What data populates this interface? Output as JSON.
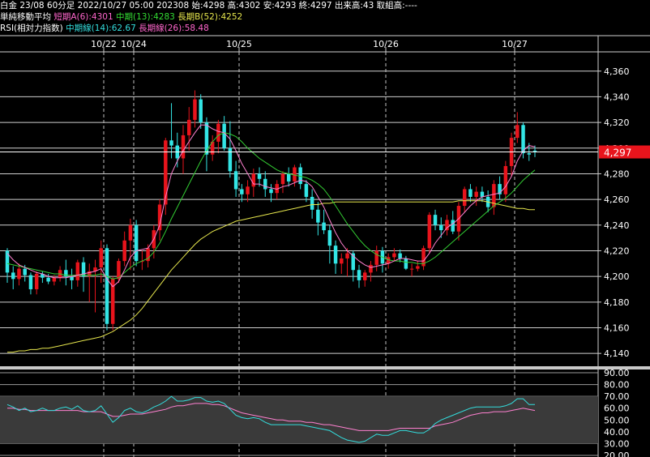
{
  "header": {
    "line1": "白金 23/08 60分足 2022/10/27 05:00 202308 始:4298 高:4302 安:4293 終:4297 出来高:43 取組高:----",
    "line2": {
      "label": "単純移動平均",
      "short": "短期A(6):4301",
      "mid": "中期(13):4283",
      "long": "長期B(52):4252"
    },
    "line3": {
      "label": "RSI(相対力指数)",
      "mid": "中期線(14):62.67",
      "long": "長期線(26):58.48"
    }
  },
  "colors": {
    "up": "#e8141c",
    "down": "#33e5e5",
    "ma_short": "#ff80d0",
    "ma_mid": "#33cc33",
    "ma_long": "#e6e64d",
    "rsi_mid": "#33dddd",
    "rsi_long": "#ff80d0",
    "price_tag": "#e8141c"
  },
  "chart_data": [
    {
      "type": "candlestick",
      "x_labels": [
        "10/22",
        "10/24",
        "10/25",
        "10/26",
        "10/27"
      ],
      "y_ticks": [
        "4,360",
        "4,340",
        "4,320",
        "4,300",
        "4,280",
        "4,260",
        "4,240",
        "4,220",
        "4,200",
        "4,180",
        "4,160",
        "4,140"
      ],
      "ylim": [
        4130,
        4375
      ],
      "last_price_label": "4,297",
      "candles": [
        [
          4220,
          4222,
          4195,
          4203
        ],
        [
          4203,
          4208,
          4190,
          4198
        ],
        [
          4198,
          4210,
          4193,
          4206
        ],
        [
          4206,
          4209,
          4196,
          4201
        ],
        [
          4201,
          4203,
          4186,
          4190
        ],
        [
          4190,
          4204,
          4186,
          4202
        ],
        [
          4202,
          4204,
          4195,
          4199
        ],
        [
          4199,
          4202,
          4194,
          4196
        ],
        [
          4196,
          4201,
          4193,
          4199
        ],
        [
          4199,
          4208,
          4196,
          4205
        ],
        [
          4205,
          4213,
          4193,
          4200
        ],
        [
          4200,
          4206,
          4190,
          4197
        ],
        [
          4197,
          4213,
          4192,
          4211
        ],
        [
          4211,
          4215,
          4188,
          4200
        ],
        [
          4200,
          4210,
          4180,
          4204
        ],
        [
          4204,
          4213,
          4172,
          4207
        ],
        [
          4207,
          4228,
          4195,
          4222
        ],
        [
          4222,
          4225,
          4158,
          4163
        ],
        [
          4163,
          4200,
          4158,
          4198
        ],
        [
          4198,
          4214,
          4195,
          4212
        ],
        [
          4212,
          4235,
          4208,
          4228
        ],
        [
          4228,
          4245,
          4205,
          4240
        ],
        [
          4240,
          4244,
          4208,
          4212
        ],
        [
          4212,
          4220,
          4205,
          4212
        ],
        [
          4212,
          4225,
          4207,
          4222
        ],
        [
          4222,
          4240,
          4214,
          4236
        ],
        [
          4236,
          4260,
          4228,
          4256
        ],
        [
          4256,
          4308,
          4248,
          4306
        ],
        [
          4306,
          4335,
          4292,
          4302
        ],
        [
          4302,
          4312,
          4285,
          4292
        ],
        [
          4292,
          4318,
          4280,
          4310
        ],
        [
          4310,
          4332,
          4298,
          4322
        ],
        [
          4322,
          4345,
          4316,
          4338
        ],
        [
          4338,
          4342,
          4315,
          4320
        ],
        [
          4320,
          4324,
          4282,
          4295
        ],
        [
          4295,
          4310,
          4290,
          4305
        ],
        [
          4305,
          4322,
          4296,
          4319
        ],
        [
          4319,
          4325,
          4298,
          4300
        ],
        [
          4300,
          4321,
          4277,
          4282
        ],
        [
          4282,
          4290,
          4262,
          4268
        ],
        [
          4268,
          4272,
          4258,
          4264
        ],
        [
          4264,
          4275,
          4258,
          4270
        ],
        [
          4270,
          4284,
          4262,
          4280
        ],
        [
          4280,
          4285,
          4270,
          4276
        ],
        [
          4276,
          4282,
          4262,
          4268
        ],
        [
          4268,
          4272,
          4258,
          4265
        ],
        [
          4265,
          4275,
          4260,
          4272
        ],
        [
          4272,
          4282,
          4265,
          4280
        ],
        [
          4280,
          4285,
          4270,
          4274
        ],
        [
          4274,
          4287,
          4270,
          4285
        ],
        [
          4285,
          4288,
          4268,
          4272
        ],
        [
          4272,
          4275,
          4258,
          4262
        ],
        [
          4262,
          4268,
          4245,
          4252
        ],
        [
          4252,
          4258,
          4232,
          4242
        ],
        [
          4242,
          4252,
          4233,
          4236
        ],
        [
          4236,
          4240,
          4210,
          4224
        ],
        [
          4224,
          4228,
          4202,
          4210
        ],
        [
          4210,
          4218,
          4202,
          4214
        ],
        [
          4214,
          4222,
          4200,
          4218
        ],
        [
          4218,
          4220,
          4196,
          4205
        ],
        [
          4205,
          4209,
          4191,
          4197
        ],
        [
          4197,
          4205,
          4192,
          4203
        ],
        [
          4203,
          4212,
          4196,
          4209
        ],
        [
          4209,
          4224,
          4204,
          4220
        ],
        [
          4220,
          4223,
          4203,
          4210
        ],
        [
          4210,
          4218,
          4206,
          4215
        ],
        [
          4215,
          4222,
          4212,
          4218
        ],
        [
          4218,
          4221,
          4211,
          4214
        ],
        [
          4214,
          4216,
          4205,
          4206
        ],
        [
          4206,
          4210,
          4200,
          4206
        ],
        [
          4206,
          4212,
          4204,
          4208
        ],
        [
          4208,
          4224,
          4205,
          4222
        ],
        [
          4222,
          4250,
          4218,
          4248
        ],
        [
          4248,
          4252,
          4236,
          4240
        ],
        [
          4240,
          4246,
          4230,
          4236
        ],
        [
          4236,
          4248,
          4232,
          4244
        ],
        [
          4244,
          4251,
          4233,
          4235
        ],
        [
          4235,
          4258,
          4228,
          4255
        ],
        [
          4255,
          4270,
          4250,
          4268
        ],
        [
          4268,
          4272,
          4258,
          4262
        ],
        [
          4262,
          4270,
          4255,
          4266
        ],
        [
          4266,
          4270,
          4258,
          4262
        ],
        [
          4262,
          4267,
          4250,
          4254
        ],
        [
          4254,
          4275,
          4248,
          4272
        ],
        [
          4272,
          4278,
          4260,
          4264
        ],
        [
          4264,
          4290,
          4258,
          4286
        ],
        [
          4286,
          4312,
          4278,
          4308
        ],
        [
          4308,
          4328,
          4304,
          4318
        ],
        [
          4318,
          4320,
          4292,
          4296
        ],
        [
          4296,
          4304,
          4290,
          4295
        ],
        [
          4298,
          4302,
          4293,
          4297
        ]
      ],
      "ma_short": [
        4218,
        4213,
        4209,
        4207,
        4205,
        4203,
        4202,
        4200,
        4199,
        4199,
        4199,
        4200,
        4201,
        4202,
        4203,
        4204,
        4206,
        4198,
        4192,
        4196,
        4205,
        4215,
        4220,
        4221,
        4222,
        4229,
        4240,
        4262,
        4280,
        4290,
        4298,
        4305,
        4312,
        4318,
        4318,
        4315,
        4313,
        4312,
        4307,
        4298,
        4288,
        4280,
        4272,
        4272,
        4270,
        4269,
        4268,
        4270,
        4271,
        4273,
        4275,
        4274,
        4270,
        4262,
        4254,
        4244,
        4234,
        4226,
        4220,
        4216,
        4212,
        4209,
        4207,
        4208,
        4209,
        4210,
        4212,
        4214,
        4214,
        4213,
        4212,
        4212,
        4218,
        4226,
        4232,
        4238,
        4241,
        4245,
        4250,
        4255,
        4259,
        4262,
        4263,
        4264,
        4265,
        4270,
        4278,
        4290,
        4298,
        4302,
        4301
      ],
      "ma_mid": [
        4210,
        4209,
        4208,
        4207,
        4206,
        4205,
        4204,
        4203,
        4202,
        4202,
        4201,
        4201,
        4201,
        4201,
        4201,
        4201,
        4202,
        4200,
        4198,
        4199,
        4203,
        4207,
        4210,
        4212,
        4214,
        4219,
        4226,
        4235,
        4245,
        4254,
        4263,
        4272,
        4281,
        4290,
        4298,
        4305,
        4310,
        4312,
        4311,
        4309,
        4305,
        4300,
        4296,
        4292,
        4289,
        4286,
        4283,
        4281,
        4280,
        4279,
        4278,
        4277,
        4275,
        4272,
        4268,
        4262,
        4255,
        4248,
        4241,
        4235,
        4229,
        4224,
        4220,
        4217,
        4215,
        4213,
        4212,
        4212,
        4211,
        4211,
        4210,
        4210,
        4212,
        4215,
        4219,
        4223,
        4227,
        4231,
        4235,
        4239,
        4243,
        4247,
        4251,
        4255,
        4258,
        4261,
        4265,
        4270,
        4275,
        4279,
        4283
      ],
      "ma_long": [
        4141,
        4141,
        4142,
        4142,
        4143,
        4143,
        4144,
        4144,
        4145,
        4146,
        4147,
        4148,
        4149,
        4150,
        4151,
        4152,
        4153,
        4155,
        4157,
        4160,
        4163,
        4166,
        4170,
        4175,
        4181,
        4187,
        4193,
        4199,
        4205,
        4210,
        4215,
        4220,
        4225,
        4229,
        4232,
        4235,
        4237,
        4239,
        4241,
        4243,
        4244,
        4245,
        4246,
        4247,
        4248,
        4249,
        4250,
        4251,
        4252,
        4253,
        4254,
        4255,
        4256,
        4256,
        4257,
        4257,
        4258,
        4258,
        4258,
        4258,
        4258,
        4258,
        4258,
        4258,
        4258,
        4258,
        4258,
        4258,
        4258,
        4258,
        4258,
        4258,
        4258,
        4258,
        4258,
        4258,
        4258,
        4259,
        4259,
        4259,
        4259,
        4259,
        4258,
        4257,
        4256,
        4255,
        4254,
        4253,
        4253,
        4252,
        4252
      ]
    },
    {
      "type": "line",
      "name": "RSI",
      "y_ticks": [
        "90.00",
        "80.00",
        "70.00",
        "60.00",
        "50.00",
        "40.00",
        "30.00",
        "20.00"
      ],
      "ylim": [
        20,
        90
      ],
      "band": [
        30,
        70
      ],
      "series": [
        {
          "name": "中期線(14)",
          "values": [
            63,
            61,
            58,
            60,
            57,
            58,
            60,
            58,
            58,
            60,
            61,
            59,
            62,
            58,
            57,
            58,
            62,
            55,
            48,
            52,
            58,
            60,
            57,
            56,
            58,
            61,
            63,
            66,
            70,
            66,
            66,
            67,
            69,
            69,
            66,
            65,
            66,
            64,
            59,
            54,
            52,
            51,
            52,
            51,
            48,
            46,
            46,
            46,
            46,
            46,
            46,
            45,
            44,
            43,
            42,
            41,
            38,
            35,
            33,
            32,
            31,
            32,
            35,
            38,
            37,
            37,
            39,
            41,
            41,
            40,
            39,
            39,
            42,
            47,
            50,
            52,
            54,
            56,
            58,
            60,
            61,
            61,
            61,
            61,
            61,
            62,
            64,
            68,
            68,
            63,
            63
          ]
        },
        {
          "name": "長期線(26)",
          "values": [
            60,
            60,
            59,
            59,
            58,
            58,
            58,
            58,
            58,
            58,
            58,
            58,
            58,
            57,
            57,
            57,
            57,
            55,
            53,
            53,
            54,
            55,
            55,
            55,
            56,
            57,
            58,
            59,
            61,
            62,
            62,
            63,
            64,
            64,
            64,
            63,
            63,
            62,
            60,
            58,
            56,
            55,
            54,
            53,
            52,
            51,
            50,
            50,
            49,
            49,
            49,
            48,
            48,
            47,
            46,
            46,
            45,
            44,
            43,
            42,
            41,
            41,
            41,
            41,
            41,
            41,
            42,
            43,
            43,
            43,
            43,
            43,
            43,
            45,
            46,
            47,
            48,
            50,
            52,
            54,
            55,
            56,
            56,
            57,
            57,
            57,
            58,
            59,
            60,
            59,
            58
          ]
        }
      ]
    }
  ]
}
